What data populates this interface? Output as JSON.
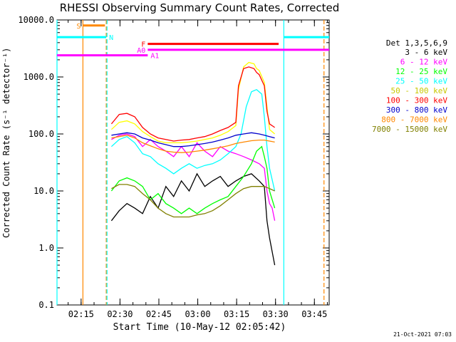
{
  "chart_data": {
    "type": "line",
    "title": "RHESSI Observing Summary Count Rates, Corrected",
    "xlabel": "Start Time (10-May-12 02:05:42)",
    "ylabel": "Corrected Count Rate (s⁻¹ detector⁻¹)",
    "footer": "21-Oct-2021 07:03",
    "y_scale": "log",
    "ylim": [
      0.1,
      10000
    ],
    "y_ticks": [
      "0.1",
      "1.0",
      "10.0",
      "100.0",
      "1000.0",
      "10000.0"
    ],
    "x_range_minutes": [
      0,
      105
    ],
    "x_ticks": [
      {
        "label": "02:15",
        "minute": 9.3
      },
      {
        "label": "02:30",
        "minute": 24.3
      },
      {
        "label": "02:45",
        "minute": 39.3
      },
      {
        "label": "03:00",
        "minute": 54.3
      },
      {
        "label": "03:15",
        "minute": 69.3
      },
      {
        "label": "03:30",
        "minute": 84.3
      },
      {
        "label": "03:45",
        "minute": 99.3
      }
    ],
    "legend": {
      "header": "Det 1,3,5,6,9",
      "position": "right"
    },
    "series": [
      {
        "name": "3 - 6 keV",
        "color": "#000000",
        "points": [
          [
            21,
            3
          ],
          [
            24,
            4.5
          ],
          [
            27,
            6
          ],
          [
            30,
            5
          ],
          [
            33,
            4
          ],
          [
            36,
            8
          ],
          [
            39,
            5
          ],
          [
            42,
            12
          ],
          [
            45,
            8
          ],
          [
            48,
            15
          ],
          [
            51,
            10
          ],
          [
            54,
            20
          ],
          [
            57,
            12
          ],
          [
            60,
            15
          ],
          [
            63,
            18
          ],
          [
            66,
            12
          ],
          [
            69,
            15
          ],
          [
            72,
            18
          ],
          [
            75,
            20
          ],
          [
            78,
            15
          ],
          [
            80,
            12
          ],
          [
            81,
            3
          ],
          [
            82,
            1.5
          ],
          [
            84,
            0.5
          ]
        ]
      },
      {
        "name": "6 - 12 keV",
        "color": "#ff00ff",
        "points": [
          [
            21,
            80
          ],
          [
            24,
            95
          ],
          [
            27,
            100
          ],
          [
            30,
            90
          ],
          [
            33,
            60
          ],
          [
            36,
            80
          ],
          [
            39,
            60
          ],
          [
            42,
            50
          ],
          [
            45,
            40
          ],
          [
            48,
            60
          ],
          [
            51,
            40
          ],
          [
            54,
            70
          ],
          [
            57,
            50
          ],
          [
            60,
            40
          ],
          [
            63,
            60
          ],
          [
            66,
            50
          ],
          [
            69,
            45
          ],
          [
            72,
            40
          ],
          [
            75,
            35
          ],
          [
            78,
            30
          ],
          [
            80,
            25
          ],
          [
            81,
            10
          ],
          [
            82,
            6
          ],
          [
            83,
            5
          ],
          [
            84,
            3
          ]
        ]
      },
      {
        "name": "12 - 25 keV",
        "color": "#00ff00",
        "points": [
          [
            21,
            10
          ],
          [
            24,
            15
          ],
          [
            27,
            17
          ],
          [
            30,
            15
          ],
          [
            33,
            12
          ],
          [
            36,
            7
          ],
          [
            39,
            9
          ],
          [
            42,
            6
          ],
          [
            45,
            5
          ],
          [
            48,
            4
          ],
          [
            51,
            5
          ],
          [
            54,
            4
          ],
          [
            57,
            5
          ],
          [
            60,
            6
          ],
          [
            63,
            7
          ],
          [
            66,
            8
          ],
          [
            69,
            12
          ],
          [
            72,
            18
          ],
          [
            75,
            30
          ],
          [
            77,
            50
          ],
          [
            79,
            60
          ],
          [
            80,
            40
          ],
          [
            81,
            25
          ],
          [
            82,
            10
          ],
          [
            84,
            5
          ]
        ]
      },
      {
        "name": "25 - 50 keV",
        "color": "#00ffff",
        "points": [
          [
            21,
            60
          ],
          [
            24,
            80
          ],
          [
            27,
            90
          ],
          [
            30,
            70
          ],
          [
            33,
            45
          ],
          [
            36,
            40
          ],
          [
            39,
            30
          ],
          [
            42,
            25
          ],
          [
            45,
            20
          ],
          [
            48,
            25
          ],
          [
            51,
            30
          ],
          [
            54,
            25
          ],
          [
            57,
            28
          ],
          [
            60,
            30
          ],
          [
            63,
            35
          ],
          [
            66,
            45
          ],
          [
            69,
            60
          ],
          [
            71,
            100
          ],
          [
            73,
            300
          ],
          [
            75,
            550
          ],
          [
            77,
            600
          ],
          [
            79,
            500
          ],
          [
            80,
            200
          ],
          [
            81,
            60
          ],
          [
            82,
            25
          ],
          [
            84,
            10
          ]
        ]
      },
      {
        "name": "50 - 100 keV",
        "color": "#ffff00",
        "points": [
          [
            21,
            120
          ],
          [
            24,
            160
          ],
          [
            27,
            170
          ],
          [
            30,
            150
          ],
          [
            33,
            110
          ],
          [
            36,
            90
          ],
          [
            39,
            75
          ],
          [
            42,
            70
          ],
          [
            45,
            70
          ],
          [
            48,
            70
          ],
          [
            51,
            72
          ],
          [
            54,
            75
          ],
          [
            57,
            80
          ],
          [
            60,
            85
          ],
          [
            63,
            95
          ],
          [
            66,
            110
          ],
          [
            69,
            140
          ],
          [
            70,
            600
          ],
          [
            72,
            1500
          ],
          [
            74,
            1800
          ],
          [
            76,
            1700
          ],
          [
            77,
            1400
          ],
          [
            78,
            1300
          ],
          [
            80,
            800
          ],
          [
            81,
            300
          ],
          [
            82,
            120
          ],
          [
            84,
            100
          ]
        ]
      },
      {
        "name": "100 - 300 keV",
        "color": "#ff0000",
        "points": [
          [
            21,
            150
          ],
          [
            24,
            220
          ],
          [
            27,
            230
          ],
          [
            30,
            200
          ],
          [
            33,
            130
          ],
          [
            36,
            100
          ],
          [
            39,
            85
          ],
          [
            42,
            80
          ],
          [
            45,
            75
          ],
          [
            48,
            78
          ],
          [
            51,
            80
          ],
          [
            54,
            85
          ],
          [
            57,
            90
          ],
          [
            60,
            100
          ],
          [
            63,
            115
          ],
          [
            66,
            130
          ],
          [
            69,
            160
          ],
          [
            70,
            700
          ],
          [
            72,
            1400
          ],
          [
            74,
            1500
          ],
          [
            76,
            1400
          ],
          [
            77,
            1200
          ],
          [
            78,
            1100
          ],
          [
            80,
            700
          ],
          [
            81,
            250
          ],
          [
            82,
            150
          ],
          [
            84,
            130
          ]
        ]
      },
      {
        "name": "300 - 800 keV",
        "color": "#0000cc",
        "points": [
          [
            21,
            95
          ],
          [
            24,
            100
          ],
          [
            27,
            105
          ],
          [
            30,
            100
          ],
          [
            33,
            85
          ],
          [
            36,
            78
          ],
          [
            39,
            70
          ],
          [
            42,
            65
          ],
          [
            45,
            60
          ],
          [
            48,
            60
          ],
          [
            51,
            62
          ],
          [
            54,
            65
          ],
          [
            57,
            68
          ],
          [
            60,
            72
          ],
          [
            63,
            78
          ],
          [
            66,
            85
          ],
          [
            69,
            95
          ],
          [
            72,
            100
          ],
          [
            75,
            105
          ],
          [
            78,
            100
          ],
          [
            80,
            95
          ],
          [
            82,
            90
          ],
          [
            84,
            85
          ]
        ]
      },
      {
        "name": "800 - 7000 keV",
        "color": "#ff8800",
        "points": [
          [
            21,
            85
          ],
          [
            24,
            90
          ],
          [
            27,
            95
          ],
          [
            30,
            85
          ],
          [
            33,
            70
          ],
          [
            36,
            62
          ],
          [
            39,
            55
          ],
          [
            42,
            50
          ],
          [
            45,
            48
          ],
          [
            48,
            47
          ],
          [
            51,
            48
          ],
          [
            54,
            50
          ],
          [
            57,
            52
          ],
          [
            60,
            55
          ],
          [
            63,
            58
          ],
          [
            66,
            62
          ],
          [
            69,
            68
          ],
          [
            72,
            72
          ],
          [
            75,
            76
          ],
          [
            78,
            78
          ],
          [
            80,
            78
          ],
          [
            82,
            75
          ],
          [
            84,
            72
          ]
        ]
      },
      {
        "name": "7000 - 15000 keV",
        "color": "#808000",
        "points": [
          [
            21,
            11
          ],
          [
            24,
            13
          ],
          [
            27,
            13
          ],
          [
            30,
            12
          ],
          [
            33,
            9
          ],
          [
            36,
            7
          ],
          [
            39,
            5
          ],
          [
            42,
            4
          ],
          [
            45,
            3.5
          ],
          [
            48,
            3.5
          ],
          [
            51,
            3.5
          ],
          [
            54,
            3.8
          ],
          [
            57,
            4
          ],
          [
            60,
            4.5
          ],
          [
            63,
            5.5
          ],
          [
            66,
            7
          ],
          [
            69,
            9
          ],
          [
            72,
            11
          ],
          [
            75,
            12
          ],
          [
            78,
            12
          ],
          [
            80,
            12
          ],
          [
            82,
            11
          ],
          [
            84,
            10
          ]
        ]
      }
    ],
    "vertical_lines": [
      {
        "minute": 0,
        "color": "#00ffff",
        "style": "solid"
      },
      {
        "minute": 10,
        "color": "#ff8800",
        "style": "solid"
      },
      {
        "minute": 19,
        "color": "#ff8800",
        "style": "dashed"
      },
      {
        "minute": 19.3,
        "color": "#00ffff",
        "style": "dashed"
      },
      {
        "minute": 87.5,
        "color": "#00ffff",
        "style": "solid"
      },
      {
        "minute": 103,
        "color": "#ff8800",
        "style": "dashed"
      }
    ],
    "status_bars": [
      {
        "label": "S",
        "color": "#ff8800",
        "start": 10,
        "end": 18.5,
        "y": 8000,
        "label_side": "left"
      },
      {
        "label": "N",
        "color": "#00ffff",
        "start": 0,
        "end": 19,
        "y": 5000,
        "label_side": "right"
      },
      {
        "label": "N",
        "color": "#00ffff",
        "start": 87.5,
        "end": 105,
        "y": 5000,
        "label_side": "none"
      },
      {
        "label": "F",
        "color": "#ff0000",
        "start": 35,
        "end": 85.5,
        "y": 3800,
        "label_side": "left"
      },
      {
        "label": "A0",
        "color": "#ff00ff",
        "start": 35,
        "end": 105,
        "y": 3000,
        "label_side": "left"
      },
      {
        "label": "A1",
        "color": "#ff00ff",
        "start": 0,
        "end": 35,
        "y": 2400,
        "label_side": "right"
      }
    ]
  }
}
